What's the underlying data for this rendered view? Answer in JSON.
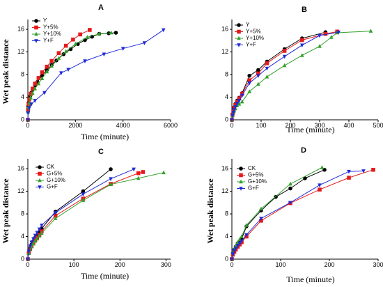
{
  "chart_data": [
    {
      "type": "line",
      "title": "A",
      "xlabel": "Time   (minute)",
      "ylabel": "Wet peak distance",
      "xlim": [
        0,
        6000
      ],
      "ylim": [
        0,
        17
      ],
      "xticks": [
        0,
        2000,
        4000,
        6000
      ],
      "yticks": [
        0,
        4,
        8,
        12,
        16
      ],
      "legend": "top-left",
      "series": [
        {
          "name": "Y",
          "color": "#000000",
          "marker": "circle",
          "x": [
            0,
            5,
            15,
            30,
            60,
            100,
            150,
            200,
            300,
            400,
            600,
            800,
            1000,
            1200,
            1500,
            1800,
            2100,
            2400,
            2700,
            3000,
            3400,
            3700
          ],
          "y": [
            0,
            1.5,
            2.4,
            3.0,
            3.7,
            4.2,
            4.8,
            5.3,
            6.1,
            6.7,
            7.8,
            8.8,
            9.7,
            10.5,
            11.6,
            12.5,
            13.4,
            14.1,
            14.7,
            15.2,
            15.3,
            15.4
          ]
        },
        {
          "name": "Y+5%",
          "color": "#e41a1c",
          "marker": "square",
          "x": [
            0,
            10,
            30,
            60,
            120,
            200,
            300,
            450,
            600,
            800,
            1000,
            1300,
            1600,
            1900,
            2200,
            2600
          ],
          "y": [
            0,
            1.8,
            2.8,
            3.6,
            4.6,
            5.5,
            6.4,
            7.4,
            8.4,
            9.4,
            10.4,
            11.8,
            13.1,
            14.2,
            15.1,
            15.9
          ]
        },
        {
          "name": "Y+10%",
          "color": "#33a02c",
          "marker": "triangle",
          "x": [
            0,
            10,
            30,
            60,
            120,
            200,
            300,
            450,
            600,
            800,
            1000,
            1300,
            1600,
            2000,
            2500,
            3000,
            3500
          ],
          "y": [
            0,
            1.4,
            2.3,
            3.0,
            3.9,
            4.7,
            5.5,
            6.4,
            7.3,
            8.5,
            9.5,
            10.9,
            12.1,
            13.4,
            14.6,
            15.2,
            15.4
          ]
        },
        {
          "name": "Y+F",
          "color": "#1f2bd6",
          "marker": "triangle-down",
          "x": [
            0,
            10,
            60,
            150,
            300,
            700,
            1400,
            1700,
            2400,
            3200,
            4000,
            4900,
            5700
          ],
          "y": [
            0,
            1.2,
            2.1,
            2.8,
            3.4,
            4.8,
            8.3,
            8.9,
            10.4,
            11.6,
            12.6,
            13.6,
            15.9
          ]
        }
      ]
    },
    {
      "type": "line",
      "title": "B",
      "xlabel": "Time   (minute)",
      "ylabel": "",
      "xlim": [
        0,
        500
      ],
      "ylim": [
        0,
        17
      ],
      "xticks": [
        0,
        100,
        200,
        300,
        400,
        500
      ],
      "yticks": [
        0,
        4,
        8,
        12,
        16
      ],
      "legend": "top-left",
      "series": [
        {
          "name": "Y",
          "color": "#000000",
          "marker": "circle",
          "x": [
            0,
            2,
            5,
            8,
            12,
            18,
            25,
            35,
            60,
            90,
            120,
            180,
            240,
            320
          ],
          "y": [
            0,
            1.0,
            1.6,
            2.2,
            2.8,
            3.4,
            3.9,
            4.7,
            7.8,
            8.8,
            10.3,
            12.5,
            14.4,
            15.5
          ]
        },
        {
          "name": "Y+5%",
          "color": "#e41a1c",
          "marker": "square",
          "x": [
            0,
            2,
            5,
            8,
            12,
            18,
            25,
            35,
            60,
            90,
            120,
            180,
            240,
            320,
            360
          ],
          "y": [
            0,
            0.9,
            1.5,
            2.0,
            2.6,
            3.2,
            3.8,
            4.6,
            7.0,
            8.2,
            10.0,
            12.2,
            14.1,
            15.2,
            15.6
          ]
        },
        {
          "name": "Y+10%",
          "color": "#33a02c",
          "marker": "triangle",
          "x": [
            0,
            2,
            5,
            8,
            12,
            18,
            25,
            35,
            60,
            90,
            120,
            180,
            240,
            300,
            340,
            360,
            475
          ],
          "y": [
            0,
            0.7,
            1.2,
            1.6,
            2.0,
            2.5,
            2.8,
            3.2,
            5.0,
            6.3,
            7.6,
            9.6,
            11.4,
            13.0,
            14.6,
            15.4,
            15.7
          ]
        },
        {
          "name": "Y+F",
          "color": "#1f2bd6",
          "marker": "triangle-down",
          "x": [
            0,
            2,
            5,
            8,
            12,
            18,
            25,
            35,
            60,
            90,
            120,
            180,
            240,
            300,
            365
          ],
          "y": [
            0,
            0.8,
            1.3,
            1.8,
            2.3,
            2.9,
            3.4,
            4.3,
            6.5,
            7.8,
            9.1,
            11.2,
            13.2,
            14.9,
            15.5
          ]
        }
      ]
    },
    {
      "type": "line",
      "title": "C",
      "xlabel": "Time   (minute)",
      "ylabel": "Wet peak distance",
      "xlim": [
        0,
        310
      ],
      "ylim": [
        0,
        17
      ],
      "xticks": [
        0,
        100,
        200,
        300
      ],
      "yticks": [
        0,
        4,
        8,
        12,
        16
      ],
      "legend": "top-left",
      "series": [
        {
          "name": "CK",
          "color": "#000000",
          "marker": "circle",
          "x": [
            0,
            2,
            5,
            8,
            12,
            16,
            20,
            25,
            30,
            60,
            120,
            180
          ],
          "y": [
            0,
            1.2,
            2.0,
            2.6,
            3.2,
            3.8,
            4.2,
            4.8,
            5.4,
            8.4,
            12.0,
            15.9
          ]
        },
        {
          "name": "G+5%",
          "color": "#e41a1c",
          "marker": "square",
          "x": [
            0,
            2,
            5,
            8,
            12,
            16,
            20,
            25,
            30,
            60,
            120,
            180,
            240,
            250
          ],
          "y": [
            0,
            1.1,
            1.8,
            2.3,
            2.9,
            3.4,
            3.8,
            4.3,
            4.9,
            7.7,
            10.7,
            13.3,
            15.2,
            15.4
          ]
        },
        {
          "name": "G+10%",
          "color": "#33a02c",
          "marker": "triangle",
          "x": [
            0,
            2,
            5,
            8,
            12,
            16,
            20,
            25,
            30,
            60,
            120,
            180,
            240,
            295
          ],
          "y": [
            0,
            1.0,
            1.7,
            2.2,
            2.7,
            3.2,
            3.6,
            4.1,
            4.6,
            7.2,
            10.4,
            13.2,
            14.3,
            15.3
          ]
        },
        {
          "name": "G+F",
          "color": "#1f2bd6",
          "marker": "triangle-down",
          "x": [
            0,
            2,
            5,
            8,
            12,
            16,
            20,
            25,
            30,
            60,
            120,
            180,
            230
          ],
          "y": [
            0,
            1.4,
            2.3,
            3.0,
            3.6,
            4.2,
            4.7,
            5.3,
            6.0,
            8.2,
            11.5,
            14.2,
            15.9
          ]
        }
      ]
    },
    {
      "type": "line",
      "title": "D",
      "xlabel": "Time   (minute)",
      "ylabel": "Wet peak distance",
      "xlim": [
        0,
        300
      ],
      "ylim": [
        0,
        17
      ],
      "xticks": [
        0,
        100,
        200,
        300
      ],
      "yticks": [
        0,
        4,
        8,
        12,
        16
      ],
      "legend": "top-left",
      "series": [
        {
          "name": "CK",
          "color": "#000000",
          "marker": "circle",
          "x": [
            0,
            2,
            5,
            8,
            12,
            16,
            20,
            30,
            60,
            90,
            120,
            150,
            190
          ],
          "y": [
            0,
            1.0,
            1.7,
            2.2,
            2.8,
            3.2,
            3.6,
            5.8,
            8.6,
            11.0,
            12.5,
            14.3,
            15.8
          ]
        },
        {
          "name": "G+5%",
          "color": "#e41a1c",
          "marker": "square",
          "x": [
            0,
            2,
            5,
            8,
            12,
            16,
            20,
            30,
            60,
            120,
            180,
            240,
            290
          ],
          "y": [
            0,
            0.8,
            1.3,
            1.7,
            2.2,
            2.6,
            3.0,
            4.0,
            6.8,
            9.9,
            12.3,
            14.4,
            15.8
          ]
        },
        {
          "name": "G+10%",
          "color": "#33a02c",
          "marker": "triangle",
          "x": [
            0,
            2,
            5,
            8,
            12,
            16,
            20,
            30,
            60,
            120,
            185
          ],
          "y": [
            0,
            1.1,
            1.8,
            2.4,
            3.0,
            3.5,
            4.0,
            6.0,
            8.9,
            13.3,
            16.2
          ]
        },
        {
          "name": "G+F",
          "color": "#1f2bd6",
          "marker": "triangle-down",
          "x": [
            0,
            2,
            5,
            8,
            12,
            16,
            20,
            30,
            60,
            120,
            180,
            240,
            270
          ],
          "y": [
            0,
            0.9,
            1.5,
            1.9,
            2.4,
            2.8,
            3.2,
            4.3,
            7.2,
            10.0,
            13.1,
            15.5,
            15.6
          ]
        }
      ]
    }
  ]
}
